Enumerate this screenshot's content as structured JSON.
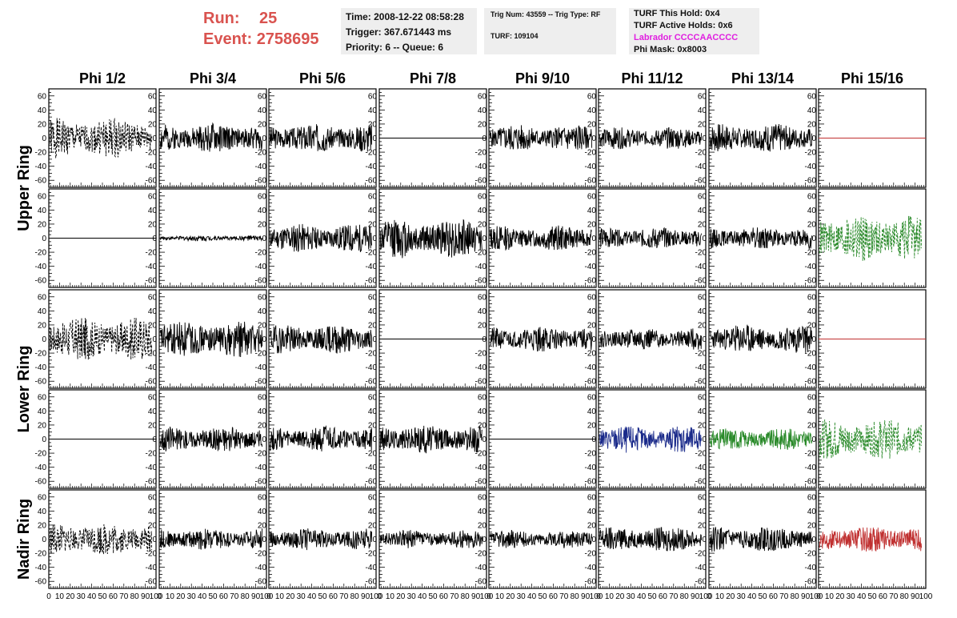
{
  "header": {
    "run_label": "Run:",
    "run_value": "25",
    "event_label": "Event:",
    "event_value": "2758695",
    "time": "Time: 2008-12-22 08:58:28",
    "trigger": "Trigger: 367.671443 ms",
    "priority": "Priority: 6 -- Queue: 6",
    "trig_num": "Trig Num: 43559 -- Trig Type: RF",
    "turf": "TURF: 109104",
    "turf_this_hold": "TURF This Hold: 0x4",
    "turf_active_holds": "TURF Active Holds: 0x6",
    "labrador": "Labrador CCCCAACCCC",
    "phi_mask": "Phi Mask: 0x8003"
  },
  "chart_data": {
    "type": "line",
    "columns": [
      "Phi 1/2",
      "Phi 3/4",
      "Phi 5/6",
      "Phi 7/8",
      "Phi 9/10",
      "Phi 11/12",
      "Phi 13/14",
      "Phi 15/16"
    ],
    "row_groups": [
      "Upper Ring",
      "Lower Ring",
      "Nadir Ring"
    ],
    "rows": 5,
    "ylim": [
      -70,
      70
    ],
    "yticks": [
      -60,
      -40,
      -20,
      0,
      20,
      40,
      60
    ],
    "xlim": [
      0,
      100
    ],
    "xtick_labels": [
      "0",
      "10",
      "20",
      "30",
      "40",
      "50",
      "60",
      "70",
      "80",
      "90",
      "100"
    ],
    "colors": {
      "black": "#000000",
      "red": "#c03030",
      "blue": "#1a2a8a",
      "green": "#2a8a2a"
    },
    "panels": [
      [
        {
          "style": "dashed",
          "color": "black",
          "amplitude": 22,
          "seed": 1
        },
        {
          "style": "solid",
          "color": "black",
          "amplitude": 16,
          "seed": 2
        },
        {
          "style": "solid",
          "color": "black",
          "amplitude": 16,
          "seed": 3
        },
        {
          "style": "flat",
          "color": "black",
          "amplitude": 0,
          "seed": 4
        },
        {
          "style": "solid",
          "color": "black",
          "amplitude": 15,
          "seed": 5
        },
        {
          "style": "solid",
          "color": "black",
          "amplitude": 12,
          "seed": 6
        },
        {
          "style": "solid",
          "color": "black",
          "amplitude": 16,
          "seed": 7
        },
        {
          "style": "flat",
          "color": "red",
          "amplitude": 0,
          "seed": 8
        }
      ],
      [
        {
          "style": "flat",
          "color": "black",
          "amplitude": 0,
          "seed": 9
        },
        {
          "style": "solid",
          "color": "black",
          "amplitude": 3,
          "seed": 10
        },
        {
          "style": "solid",
          "color": "black",
          "amplitude": 16,
          "seed": 11
        },
        {
          "style": "solid",
          "color": "black",
          "amplitude": 22,
          "seed": 12
        },
        {
          "style": "solid",
          "color": "black",
          "amplitude": 14,
          "seed": 13
        },
        {
          "style": "solid",
          "color": "black",
          "amplitude": 12,
          "seed": 14
        },
        {
          "style": "solid",
          "color": "black",
          "amplitude": 12,
          "seed": 15
        },
        {
          "style": "dashed",
          "color": "green",
          "amplitude": 26,
          "seed": 16
        }
      ],
      [
        {
          "style": "dashed",
          "color": "black",
          "amplitude": 24,
          "seed": 17
        },
        {
          "style": "solid",
          "color": "black",
          "amplitude": 20,
          "seed": 18
        },
        {
          "style": "solid",
          "color": "black",
          "amplitude": 16,
          "seed": 19
        },
        {
          "style": "flat",
          "color": "black",
          "amplitude": 0,
          "seed": 20
        },
        {
          "style": "solid",
          "color": "black",
          "amplitude": 14,
          "seed": 21
        },
        {
          "style": "solid",
          "color": "black",
          "amplitude": 12,
          "seed": 22
        },
        {
          "style": "solid",
          "color": "black",
          "amplitude": 16,
          "seed": 23
        },
        {
          "style": "flat",
          "color": "red",
          "amplitude": 0,
          "seed": 24
        }
      ],
      [
        {
          "style": "flat",
          "color": "black",
          "amplitude": 0,
          "seed": 25
        },
        {
          "style": "solid",
          "color": "black",
          "amplitude": 14,
          "seed": 26
        },
        {
          "style": "solid",
          "color": "black",
          "amplitude": 14,
          "seed": 27
        },
        {
          "style": "solid",
          "color": "black",
          "amplitude": 16,
          "seed": 28
        },
        {
          "style": "flat",
          "color": "black",
          "amplitude": 0,
          "seed": 29
        },
        {
          "style": "solid",
          "color": "blue",
          "amplitude": 15,
          "seed": 30
        },
        {
          "style": "solid",
          "color": "green",
          "amplitude": 12,
          "seed": 31
        },
        {
          "style": "dashed",
          "color": "green",
          "amplitude": 22,
          "seed": 32
        }
      ],
      [
        {
          "style": "dashed",
          "color": "black",
          "amplitude": 18,
          "seed": 33
        },
        {
          "style": "solid",
          "color": "black",
          "amplitude": 12,
          "seed": 34
        },
        {
          "style": "solid",
          "color": "black",
          "amplitude": 12,
          "seed": 35
        },
        {
          "style": "solid",
          "color": "black",
          "amplitude": 10,
          "seed": 36
        },
        {
          "style": "solid",
          "color": "black",
          "amplitude": 10,
          "seed": 37
        },
        {
          "style": "solid",
          "color": "black",
          "amplitude": 14,
          "seed": 38
        },
        {
          "style": "solid",
          "color": "black",
          "amplitude": 14,
          "seed": 39
        },
        {
          "style": "solid",
          "color": "red",
          "amplitude": 14,
          "seed": 40
        }
      ]
    ]
  }
}
